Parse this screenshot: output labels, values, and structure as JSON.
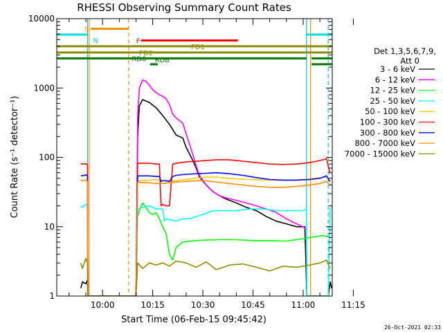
{
  "chart_data": {
    "type": "line",
    "title": "RHESSI Observing Summary Count Rates",
    "xlabel": "Start Time (06-Feb-15 09:45:42)",
    "ylabel": "Count Rate (s⁻¹ detector⁻¹)",
    "yscale": "log",
    "xlim_minutes": [
      -13.7,
      68.7
    ],
    "ylim": [
      1,
      10000
    ],
    "xtick_minutes": [
      0,
      15,
      30,
      45,
      60,
      75
    ],
    "xtick_labels": [
      "10:00",
      "10:15",
      "10:30",
      "10:45",
      "11:00",
      "11:15"
    ],
    "ytick_values": [
      1,
      10,
      100,
      1000,
      10000
    ],
    "ytick_labels": [
      "1",
      "10",
      "100",
      "1000",
      "10000"
    ],
    "legend_header": [
      "Det 1,3,5,6,7,9,",
      "Att 0"
    ],
    "legend_placement": "right",
    "timestamp": "26-Oct-2021 02:33",
    "series": [
      {
        "name": "3 - 6 keV",
        "color": "#000000",
        "x": [
          -6.5,
          -6,
          -5,
          -4.5,
          -4.4,
          10,
          10.5,
          11,
          12,
          14,
          16,
          18,
          20,
          22,
          24,
          25,
          27,
          28,
          29,
          31,
          33,
          35,
          37,
          40,
          43,
          46,
          49,
          52,
          55,
          58,
          60.5,
          61,
          61.1,
          67.5,
          68.1,
          68.5
        ],
        "y": [
          1.3,
          1.6,
          1.5,
          1.7,
          1,
          1,
          200,
          550,
          680,
          620,
          520,
          400,
          300,
          210,
          190,
          140,
          90,
          70,
          52,
          40,
          32,
          28,
          25,
          22,
          19,
          17,
          14,
          12,
          11,
          10,
          10,
          1.5,
          1,
          1,
          1.6,
          1.3
        ]
      },
      {
        "name": "6 - 12 keV",
        "color": "#ff00ff",
        "x": [
          10,
          10.5,
          11,
          12,
          13,
          14,
          15,
          16,
          17,
          18,
          19,
          20,
          21,
          22,
          23,
          24,
          25,
          27,
          28,
          29,
          31,
          33,
          35,
          37,
          40,
          43,
          46,
          49,
          52,
          55,
          58,
          60,
          61
        ],
        "y": [
          1,
          400,
          1000,
          1300,
          1250,
          1100,
          950,
          860,
          800,
          760,
          700,
          580,
          420,
          370,
          340,
          310,
          220,
          110,
          75,
          55,
          40,
          32,
          28,
          26,
          24,
          22,
          20,
          18,
          16,
          13,
          11,
          10,
          9
        ]
      },
      {
        "name": "12 - 25 keV",
        "color": "#00ff00",
        "x": [
          10,
          10.5,
          11,
          12,
          13,
          14,
          15,
          16,
          17,
          18,
          19,
          20,
          21,
          22,
          24,
          26,
          30,
          35,
          40,
          45,
          50,
          55,
          58,
          61,
          62,
          64,
          66,
          68
        ],
        "y": [
          1,
          14,
          17,
          22,
          19,
          16,
          15,
          16,
          13,
          10,
          8,
          4,
          3.3,
          5,
          6,
          6.2,
          6.4,
          6.5,
          6.5,
          6.3,
          6.3,
          6.2,
          6.5,
          6.8,
          7,
          7.2,
          7.5,
          7
        ]
      },
      {
        "name": "25 - 50 keV",
        "color": "#00ffff",
        "x": [
          -6.5,
          -6,
          -5,
          -4.5,
          -4.4,
          10,
          10.5,
          12,
          14,
          16,
          18,
          18.5,
          19,
          22,
          24,
          26,
          28,
          30,
          33,
          36,
          40,
          44,
          48,
          52,
          56,
          60,
          61,
          61.1,
          67.5,
          68.1,
          68.5
        ],
        "y": [
          20,
          19,
          21,
          20,
          1,
          1,
          18,
          19,
          20,
          18,
          18,
          12,
          13,
          12,
          13,
          13,
          14,
          15,
          17,
          17,
          17,
          18,
          18,
          17,
          17,
          17,
          18,
          1,
          1,
          18,
          19
        ]
      },
      {
        "name": "50 - 100 keV",
        "color": "#ffc800",
        "x": [
          10.5,
          14,
          16,
          18,
          20,
          22,
          25,
          28,
          31,
          34,
          37,
          40,
          44,
          48,
          52,
          56,
          60,
          64,
          67
        ],
        "y": [
          46,
          47,
          48,
          46,
          45,
          46,
          48,
          50,
          52,
          52,
          50,
          49,
          48,
          47,
          47,
          47,
          48,
          50,
          52
        ]
      },
      {
        "name": "100 - 300 keV",
        "color": "#ff0000",
        "x": [
          -6.5,
          -6,
          -5,
          -4.5,
          -4.4,
          10,
          10.5,
          12,
          14,
          16,
          17,
          17.5,
          18,
          19,
          20,
          21,
          22,
          25,
          28,
          31,
          34,
          38,
          42,
          46,
          50,
          54,
          58,
          62,
          65,
          67,
          68
        ],
        "y": [
          82,
          80,
          81,
          78,
          1,
          1,
          82,
          82,
          82,
          80,
          80,
          20,
          21,
          20,
          20,
          80,
          82,
          86,
          88,
          90,
          92,
          92,
          88,
          84,
          80,
          79,
          80,
          84,
          90,
          95,
          60
        ]
      },
      {
        "name": "300 - 800 keV",
        "color": "#0000ff",
        "x": [
          -6.5,
          -6,
          -5,
          -4.5,
          -4.4,
          10,
          10.5,
          12,
          14,
          16,
          17,
          17.5,
          18,
          19,
          20,
          21,
          22,
          25,
          28,
          31,
          34,
          38,
          42,
          46,
          50,
          54,
          58,
          62,
          65,
          67,
          68
        ],
        "y": [
          55,
          54,
          56,
          54,
          1,
          1,
          54,
          54,
          54,
          53,
          53,
          45,
          46,
          46,
          45,
          53,
          55,
          57,
          58,
          59,
          60,
          58,
          55,
          51,
          48,
          47,
          47,
          48,
          50,
          54,
          45
        ]
      },
      {
        "name": "800 - 7000 keV",
        "color": "#ff8c00",
        "x": [
          -6.5,
          -6,
          -5,
          -4.5,
          -4.4,
          10,
          10.5,
          12,
          14,
          16,
          18,
          20,
          22,
          25,
          28,
          31,
          34,
          38,
          42,
          46,
          50,
          54,
          58,
          62,
          65,
          67,
          68
        ],
        "y": [
          48,
          46,
          47,
          45,
          1,
          1,
          44,
          43,
          43,
          42,
          42,
          43,
          44,
          45,
          46,
          46,
          44,
          42,
          40,
          38,
          37,
          37,
          38,
          40,
          42,
          45,
          40
        ]
      },
      {
        "name": "7000 - 15000 keV",
        "color": "#8c8c00",
        "x": [
          -6.5,
          -6,
          -5,
          -4.5,
          -4.4,
          10,
          10.5,
          12,
          14,
          16,
          18,
          20,
          22,
          25,
          28,
          31,
          34,
          38,
          42,
          46,
          50,
          54,
          58,
          62,
          65,
          67,
          68
        ],
        "y": [
          3,
          2.5,
          3.5,
          3,
          1,
          1,
          3,
          2.5,
          3,
          2.8,
          3,
          2.7,
          3.2,
          3,
          2.6,
          3.1,
          2.4,
          2.8,
          2.9,
          2.6,
          2.3,
          2.7,
          2.6,
          2.8,
          3,
          3.3,
          2.5
        ]
      }
    ],
    "vlines": [
      {
        "x": -4.5,
        "color": "#00c8c8",
        "style": "solid"
      },
      {
        "x": -4.0,
        "color": "#ff8c00",
        "style": "solid"
      },
      {
        "x": 7.8,
        "color": "#ff8c00",
        "style": "dashed"
      },
      {
        "x": 61.0,
        "color": "#00c8c8",
        "style": "solid"
      },
      {
        "x": 62.2,
        "color": "#ff8c00",
        "style": "solid"
      },
      {
        "x": 67.5,
        "color": "#00c8c8",
        "style": "dashed"
      }
    ],
    "flags": [
      {
        "label": "S",
        "color": "#ff8c00",
        "segments": [
          [
            -3.5,
            7.8
          ]
        ],
        "level": 7150
      },
      {
        "label": "N",
        "color": "#00dcdc",
        "segments": [
          [
            -13.7,
            -4.5
          ],
          [
            61.0,
            68.7
          ]
        ],
        "level": 5900
      },
      {
        "label": "F",
        "color": "#ff0000",
        "segments": [
          [
            11.5,
            40.5
          ]
        ],
        "level": 4850
      },
      {
        "label": "FD1",
        "color": "#8c8c00",
        "segments": [
          [
            -13.7,
            68.7
          ]
        ],
        "level": 4000
      },
      {
        "label": "FD2",
        "color": "#8c8c00",
        "segments": [
          [
            -13.7,
            68.7
          ]
        ],
        "level": 3250
      },
      {
        "label": "RD6",
        "color": "#007800",
        "segments": [
          [
            -13.7,
            61.0
          ],
          [
            62.5,
            70.0
          ]
        ],
        "level": 2680
      },
      {
        "label": "RDB",
        "color": "#007800",
        "segments": [
          [
            14.2,
            16.5
          ],
          [
            62.5,
            68.7
          ]
        ],
        "level": 2200
      }
    ]
  }
}
